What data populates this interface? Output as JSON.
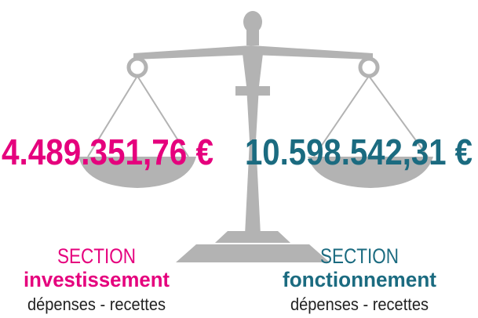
{
  "left": {
    "amount": "4.489.351,76 €",
    "section": "SECTION",
    "name": "investissement",
    "detail": "dépenses - recettes"
  },
  "right": {
    "amount": "10.598.542,31 €",
    "section": "SECTION",
    "name": "fonctionnement",
    "detail": "dépenses - recettes"
  }
}
